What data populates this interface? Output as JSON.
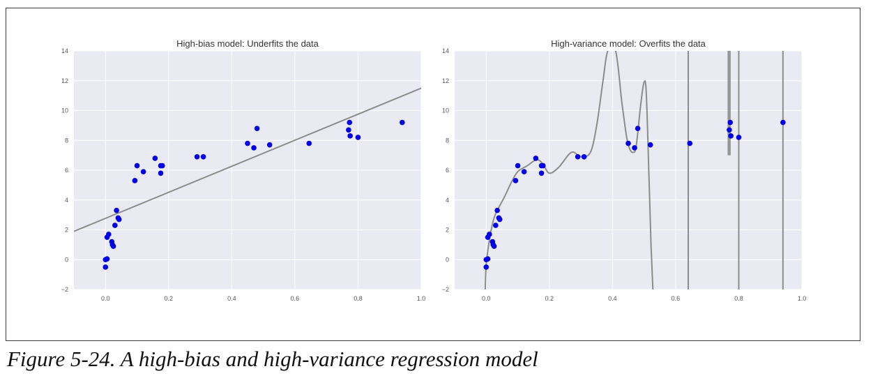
{
  "caption": "Figure 5-24. A high-bias and high-variance regression model",
  "colors": {
    "plot_bg": "#EAEAF2",
    "grid": "#FFFFFF",
    "points": "#0000E6",
    "curve": "#8C8C8C"
  },
  "chart_data": [
    {
      "type": "scatter",
      "title": "High-bias model: Underfits the data",
      "xlabel": "",
      "ylabel": "",
      "xlim": [
        -0.1,
        1.0
      ],
      "ylim": [
        -2,
        14
      ],
      "xticks": [
        "0.0",
        "0.2",
        "0.4",
        "0.6",
        "0.8",
        "1.0"
      ],
      "yticks": [
        "−2",
        "0",
        "2",
        "4",
        "6",
        "8",
        "10",
        "12",
        "14"
      ],
      "grid": true,
      "points": [
        [
          0.0,
          0.0
        ],
        [
          0.0,
          -0.5
        ],
        [
          0.005,
          0.05
        ],
        [
          0.005,
          1.5
        ],
        [
          0.01,
          1.7
        ],
        [
          0.02,
          1.2
        ],
        [
          0.022,
          1.0
        ],
        [
          0.025,
          0.9
        ],
        [
          0.03,
          2.3
        ],
        [
          0.035,
          3.3
        ],
        [
          0.04,
          2.8
        ],
        [
          0.043,
          2.7
        ],
        [
          0.093,
          5.3
        ],
        [
          0.1,
          6.3
        ],
        [
          0.12,
          5.9
        ],
        [
          0.157,
          6.8
        ],
        [
          0.175,
          5.8
        ],
        [
          0.175,
          6.3
        ],
        [
          0.18,
          6.3
        ],
        [
          0.29,
          6.9
        ],
        [
          0.31,
          6.9
        ],
        [
          0.45,
          7.8
        ],
        [
          0.47,
          7.5
        ],
        [
          0.48,
          8.8
        ],
        [
          0.52,
          7.7
        ],
        [
          0.645,
          7.8
        ],
        [
          0.77,
          8.7
        ],
        [
          0.773,
          9.2
        ],
        [
          0.775,
          8.3
        ],
        [
          0.8,
          8.2
        ],
        [
          0.94,
          9.2
        ]
      ],
      "fit": {
        "kind": "linear",
        "intercept": 2.77,
        "slope": 8.73
      }
    },
    {
      "type": "scatter",
      "title": "High-variance model: Overfits the data",
      "xlabel": "",
      "ylabel": "",
      "xlim": [
        -0.1,
        1.0
      ],
      "ylim": [
        -2,
        14
      ],
      "xticks": [
        "0.0",
        "0.2",
        "0.4",
        "0.6",
        "0.8",
        "1.0"
      ],
      "yticks": [
        "−2",
        "0",
        "2",
        "4",
        "6",
        "8",
        "10",
        "12",
        "14"
      ],
      "grid": true,
      "points": [
        [
          0.0,
          0.0
        ],
        [
          0.0,
          -0.5
        ],
        [
          0.005,
          0.05
        ],
        [
          0.005,
          1.5
        ],
        [
          0.01,
          1.7
        ],
        [
          0.02,
          1.2
        ],
        [
          0.022,
          1.0
        ],
        [
          0.025,
          0.9
        ],
        [
          0.03,
          2.3
        ],
        [
          0.035,
          3.3
        ],
        [
          0.04,
          2.8
        ],
        [
          0.043,
          2.7
        ],
        [
          0.093,
          5.3
        ],
        [
          0.1,
          6.3
        ],
        [
          0.12,
          5.9
        ],
        [
          0.157,
          6.8
        ],
        [
          0.175,
          5.8
        ],
        [
          0.175,
          6.3
        ],
        [
          0.18,
          6.3
        ],
        [
          0.29,
          6.9
        ],
        [
          0.31,
          6.9
        ],
        [
          0.45,
          7.8
        ],
        [
          0.47,
          7.5
        ],
        [
          0.48,
          8.8
        ],
        [
          0.52,
          7.7
        ],
        [
          0.645,
          7.8
        ],
        [
          0.77,
          8.7
        ],
        [
          0.773,
          9.2
        ],
        [
          0.775,
          8.3
        ],
        [
          0.8,
          8.2
        ],
        [
          0.94,
          9.2
        ]
      ],
      "fit_curve": [
        [
          -0.003,
          -2.0
        ],
        [
          0.0,
          -0.3
        ],
        [
          0.01,
          1.3
        ],
        [
          0.02,
          2.4
        ],
        [
          0.03,
          3.1
        ],
        [
          0.045,
          3.7
        ],
        [
          0.06,
          4.3
        ],
        [
          0.08,
          5.2
        ],
        [
          0.1,
          5.9
        ],
        [
          0.13,
          6.3
        ],
        [
          0.16,
          6.7
        ],
        [
          0.18,
          6.4
        ],
        [
          0.2,
          5.8
        ],
        [
          0.23,
          6.2
        ],
        [
          0.27,
          7.2
        ],
        [
          0.3,
          6.9
        ],
        [
          0.33,
          7.2
        ],
        [
          0.35,
          9.0
        ],
        [
          0.37,
          12.0
        ],
        [
          0.385,
          14.0
        ],
        [
          0.41,
          14.0
        ],
        [
          0.43,
          10.5
        ],
        [
          0.445,
          8.2
        ],
        [
          0.455,
          7.4
        ],
        [
          0.465,
          7.2
        ],
        [
          0.475,
          7.6
        ],
        [
          0.49,
          10.5
        ],
        [
          0.5,
          11.9
        ],
        [
          0.507,
          11.2
        ],
        [
          0.515,
          6.0
        ],
        [
          0.522,
          1.0
        ],
        [
          0.528,
          -2.0
        ]
      ],
      "fit_verticals": [
        {
          "x": 0.64,
          "from": -2,
          "to": 14
        },
        {
          "x": 0.767,
          "from": 7.0,
          "to": 14
        },
        {
          "x": 0.772,
          "from": 7.0,
          "to": 14
        },
        {
          "x": 0.8,
          "from": -2,
          "to": 14
        },
        {
          "x": 0.94,
          "from": -2,
          "to": 14
        }
      ]
    }
  ]
}
